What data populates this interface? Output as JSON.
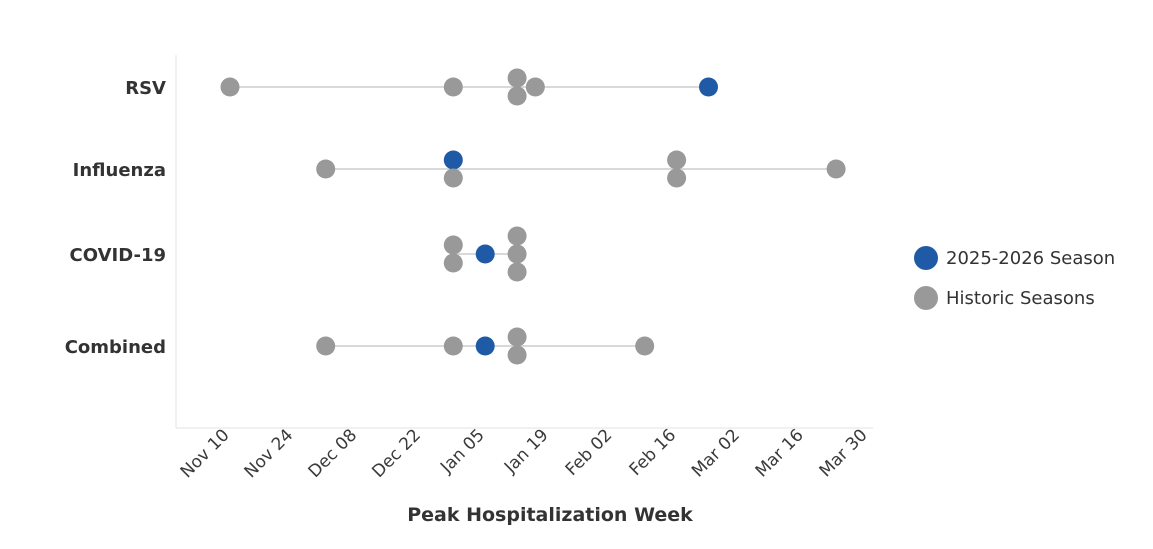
{
  "chart_data": {
    "type": "scatter",
    "title": "",
    "xlabel": "Peak Hospitalization Week",
    "ylabel": "",
    "x_ticks": [
      "Nov 10",
      "Nov 24",
      "Dec 08",
      "Dec 22",
      "Jan 05",
      "Jan 19",
      "Feb 02",
      "Feb 16",
      "Mar 02",
      "Mar 16",
      "Mar 30"
    ],
    "xlim": [
      "2024-11-10",
      "2025-03-30"
    ],
    "categories": [
      "RSV",
      "Influenza",
      "COVID-19",
      "Combined"
    ],
    "legend_position": "right",
    "series": [
      {
        "name": "2025-2026 Season",
        "color": "#1f5aa6",
        "points": [
          {
            "category": "RSV",
            "x": "2025-02-23"
          },
          {
            "category": "Influenza",
            "x": "2024-12-29"
          },
          {
            "category": "COVID-19",
            "x": "2025-01-05"
          },
          {
            "category": "Combined",
            "x": "2025-01-05"
          }
        ]
      },
      {
        "name": "Historic Seasons",
        "color": "#999999",
        "points": [
          {
            "category": "RSV",
            "x": "2024-11-10"
          },
          {
            "category": "RSV",
            "x": "2024-12-29"
          },
          {
            "category": "RSV",
            "x": "2025-01-12"
          },
          {
            "category": "RSV",
            "x": "2025-01-12"
          },
          {
            "category": "RSV",
            "x": "2025-01-16"
          },
          {
            "category": "Influenza",
            "x": "2024-12-01"
          },
          {
            "category": "Influenza",
            "x": "2024-12-29"
          },
          {
            "category": "Influenza",
            "x": "2025-02-16"
          },
          {
            "category": "Influenza",
            "x": "2025-02-16"
          },
          {
            "category": "Influenza",
            "x": "2025-03-23"
          },
          {
            "category": "COVID-19",
            "x": "2024-12-29"
          },
          {
            "category": "COVID-19",
            "x": "2024-12-29"
          },
          {
            "category": "COVID-19",
            "x": "2025-01-12"
          },
          {
            "category": "COVID-19",
            "x": "2025-01-12"
          },
          {
            "category": "COVID-19",
            "x": "2025-01-12"
          },
          {
            "category": "Combined",
            "x": "2024-12-01"
          },
          {
            "category": "Combined",
            "x": "2024-12-29"
          },
          {
            "category": "Combined",
            "x": "2025-01-12"
          },
          {
            "category": "Combined",
            "x": "2025-01-12"
          },
          {
            "category": "Combined",
            "x": "2025-02-09"
          }
        ]
      }
    ]
  }
}
